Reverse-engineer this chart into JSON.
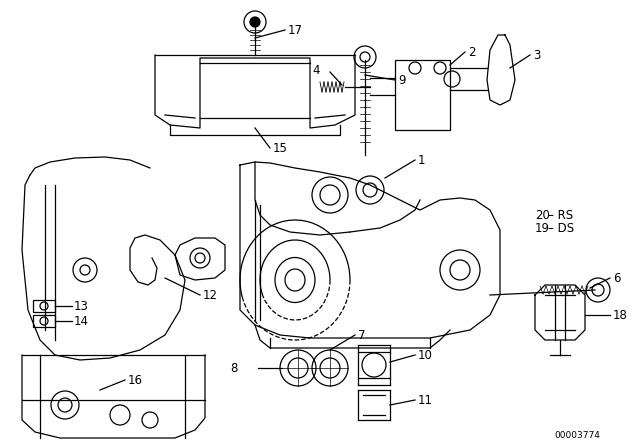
{
  "bg_color": "#ffffff",
  "line_color": "#000000",
  "part_number_code": "00003774",
  "fig_width": 6.4,
  "fig_height": 4.48,
  "dpi": 100
}
